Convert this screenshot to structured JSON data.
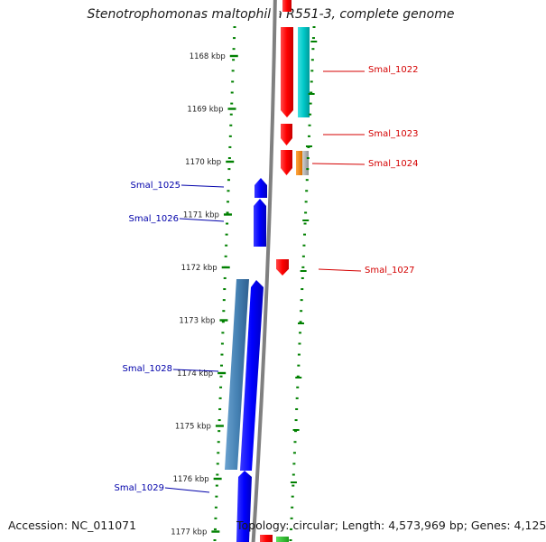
{
  "title": "Stenotrophomonas maltophilia R551-3, complete genome",
  "accession": "Accession: NC_011071",
  "info": "Topology: circular; Length: 4,573,969 bp; Genes: 4,125",
  "ticks": [
    {
      "label": "1168 kbp",
      "kbp": 1168
    },
    {
      "label": "1169 kbp",
      "kbp": 1169
    },
    {
      "label": "1170 kbp",
      "kbp": 1170
    },
    {
      "label": "1171 kbp",
      "kbp": 1171
    },
    {
      "label": "1172 kbp",
      "kbp": 1172
    },
    {
      "label": "1173 kbp",
      "kbp": 1173
    },
    {
      "label": "1174 kbp",
      "kbp": 1174
    },
    {
      "label": "1175 kbp",
      "kbp": 1175
    },
    {
      "label": "1176 kbp",
      "kbp": 1176
    },
    {
      "label": "1177 kbp",
      "kbp": 1177
    }
  ],
  "genes": [
    {
      "label": "Smal_1022",
      "strand": "forward",
      "color": "#d40000"
    },
    {
      "label": "Smal_1023",
      "strand": "forward",
      "color": "#d40000"
    },
    {
      "label": "Smal_1024",
      "strand": "forward",
      "color": "#d40000"
    },
    {
      "label": "Smal_1025",
      "strand": "reverse",
      "color": "#0000aa"
    },
    {
      "label": "Smal_1026",
      "strand": "reverse",
      "color": "#0000aa"
    },
    {
      "label": "Smal_1027",
      "strand": "forward",
      "color": "#d40000"
    },
    {
      "label": "Smal_1028",
      "strand": "reverse",
      "color": "#0000aa"
    },
    {
      "label": "Smal_1029",
      "strand": "reverse",
      "color": "#0000aa"
    }
  ],
  "colors": {
    "forward_cds": "#ff0000",
    "reverse_cds": "#0000ff",
    "trna": "#00c8c8",
    "other_gene": "#4682b4",
    "misc": "#ff8c00",
    "backbone": "#808080",
    "tick": "#008000"
  }
}
